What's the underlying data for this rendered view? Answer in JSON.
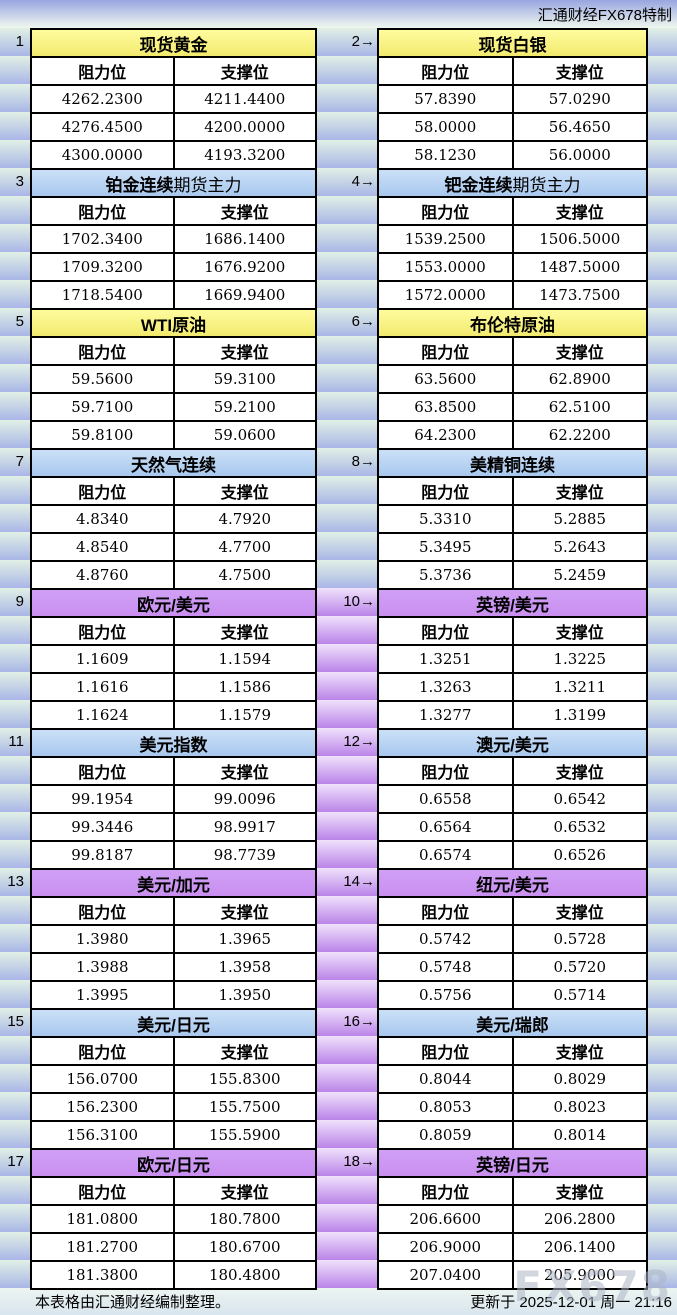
{
  "header": {
    "brand": "汇通财经FX678特制"
  },
  "labels": {
    "resistance": "阻力位",
    "support": "支撑位"
  },
  "footer": {
    "note": "本表格由汇通财经编制整理。",
    "updated": "更新于 2025-12-01 周一 21:16",
    "watermark": "FX678"
  },
  "colors": {
    "header_yellow": "#F7F08C",
    "header_blue": "#B5D2F0",
    "header_purple": "#C98FF0",
    "stripe_blue": "#A9B6E7",
    "stripe_green": "#E1F0E5",
    "stripe_purple_light": "#F0E2FC",
    "stripe_purple_dark": "#BB84E9",
    "border": "#000000"
  },
  "sections": [
    {
      "theme": "yellow",
      "gutter": "green",
      "left": {
        "num": "1",
        "title": "现货黄金",
        "title_light": "",
        "rows": [
          [
            "4262.2300",
            "4211.4400"
          ],
          [
            "4276.4500",
            "4200.0000"
          ],
          [
            "4300.0000",
            "4193.3200"
          ]
        ]
      },
      "right": {
        "num": "2→",
        "title": "现货白银",
        "title_light": "",
        "rows": [
          [
            "57.8390",
            "57.0290"
          ],
          [
            "58.0000",
            "56.4650"
          ],
          [
            "58.1230",
            "56.0000"
          ]
        ]
      }
    },
    {
      "theme": "blue",
      "gutter": "green",
      "left": {
        "num": "3",
        "title": "铂金连续",
        "title_light": "期货主力",
        "rows": [
          [
            "1702.3400",
            "1686.1400"
          ],
          [
            "1709.3200",
            "1676.9200"
          ],
          [
            "1718.5400",
            "1669.9400"
          ]
        ]
      },
      "right": {
        "num": "4→",
        "title": "钯金连续",
        "title_light": "期货主力",
        "rows": [
          [
            "1539.2500",
            "1506.5000"
          ],
          [
            "1553.0000",
            "1487.5000"
          ],
          [
            "1572.0000",
            "1473.7500"
          ]
        ]
      }
    },
    {
      "theme": "yellow",
      "gutter": "green",
      "left": {
        "num": "5",
        "title": "WTI原油",
        "title_light": "",
        "rows": [
          [
            "59.5600",
            "59.3100"
          ],
          [
            "59.7100",
            "59.2100"
          ],
          [
            "59.8100",
            "59.0600"
          ]
        ]
      },
      "right": {
        "num": "6→",
        "title": "布伦特原油",
        "title_light": "",
        "rows": [
          [
            "63.5600",
            "62.8900"
          ],
          [
            "63.8500",
            "62.5100"
          ],
          [
            "64.2300",
            "62.2200"
          ]
        ]
      }
    },
    {
      "theme": "blue",
      "gutter": "green",
      "left": {
        "num": "7",
        "title": "天然气连续",
        "title_light": "",
        "rows": [
          [
            "4.8340",
            "4.7920"
          ],
          [
            "4.8540",
            "4.7700"
          ],
          [
            "4.8760",
            "4.7500"
          ]
        ]
      },
      "right": {
        "num": "8→",
        "title": "美精铜连续",
        "title_light": "",
        "rows": [
          [
            "5.3310",
            "5.2885"
          ],
          [
            "5.3495",
            "5.2643"
          ],
          [
            "5.3736",
            "5.2459"
          ]
        ]
      }
    },
    {
      "theme": "purple",
      "gutter": "purple",
      "left": {
        "num": "9",
        "title": "欧元/美元",
        "title_light": "",
        "rows": [
          [
            "1.1609",
            "1.1594"
          ],
          [
            "1.1616",
            "1.1586"
          ],
          [
            "1.1624",
            "1.1579"
          ]
        ]
      },
      "right": {
        "num": "10→",
        "title": "英镑/美元",
        "title_light": "",
        "rows": [
          [
            "1.3251",
            "1.3225"
          ],
          [
            "1.3263",
            "1.3211"
          ],
          [
            "1.3277",
            "1.3199"
          ]
        ]
      }
    },
    {
      "theme": "blue",
      "gutter": "purple",
      "left": {
        "num": "11",
        "title": "美元指数",
        "title_light": "",
        "rows": [
          [
            "99.1954",
            "99.0096"
          ],
          [
            "99.3446",
            "98.9917"
          ],
          [
            "99.8187",
            "98.7739"
          ]
        ]
      },
      "right": {
        "num": "12→",
        "title": "澳元/美元",
        "title_light": "",
        "rows": [
          [
            "0.6558",
            "0.6542"
          ],
          [
            "0.6564",
            "0.6532"
          ],
          [
            "0.6574",
            "0.6526"
          ]
        ]
      }
    },
    {
      "theme": "purple",
      "gutter": "purple",
      "left": {
        "num": "13",
        "title": "美元/加元",
        "title_light": "",
        "rows": [
          [
            "1.3980",
            "1.3965"
          ],
          [
            "1.3988",
            "1.3958"
          ],
          [
            "1.3995",
            "1.3950"
          ]
        ]
      },
      "right": {
        "num": "14→",
        "title": "纽元/美元",
        "title_light": "",
        "rows": [
          [
            "0.5742",
            "0.5728"
          ],
          [
            "0.5748",
            "0.5720"
          ],
          [
            "0.5756",
            "0.5714"
          ]
        ]
      }
    },
    {
      "theme": "blue",
      "gutter": "purple",
      "left": {
        "num": "15",
        "title": "美元/日元",
        "title_light": "",
        "rows": [
          [
            "156.0700",
            "155.8300"
          ],
          [
            "156.2300",
            "155.7500"
          ],
          [
            "156.3100",
            "155.5900"
          ]
        ]
      },
      "right": {
        "num": "16→",
        "title": "美元/瑞郎",
        "title_light": "",
        "rows": [
          [
            "0.8044",
            "0.8029"
          ],
          [
            "0.8053",
            "0.8023"
          ],
          [
            "0.8059",
            "0.8014"
          ]
        ]
      }
    },
    {
      "theme": "purple",
      "gutter": "purple",
      "left": {
        "num": "17",
        "title": "欧元/日元",
        "title_light": "",
        "rows": [
          [
            "181.0800",
            "180.7800"
          ],
          [
            "181.2700",
            "180.6700"
          ],
          [
            "181.3800",
            "180.4800"
          ]
        ]
      },
      "right": {
        "num": "18→",
        "title": "英镑/日元",
        "title_light": "",
        "rows": [
          [
            "206.6600",
            "206.2800"
          ],
          [
            "206.9000",
            "206.1400"
          ],
          [
            "207.0400",
            "205.9000"
          ]
        ]
      }
    }
  ]
}
